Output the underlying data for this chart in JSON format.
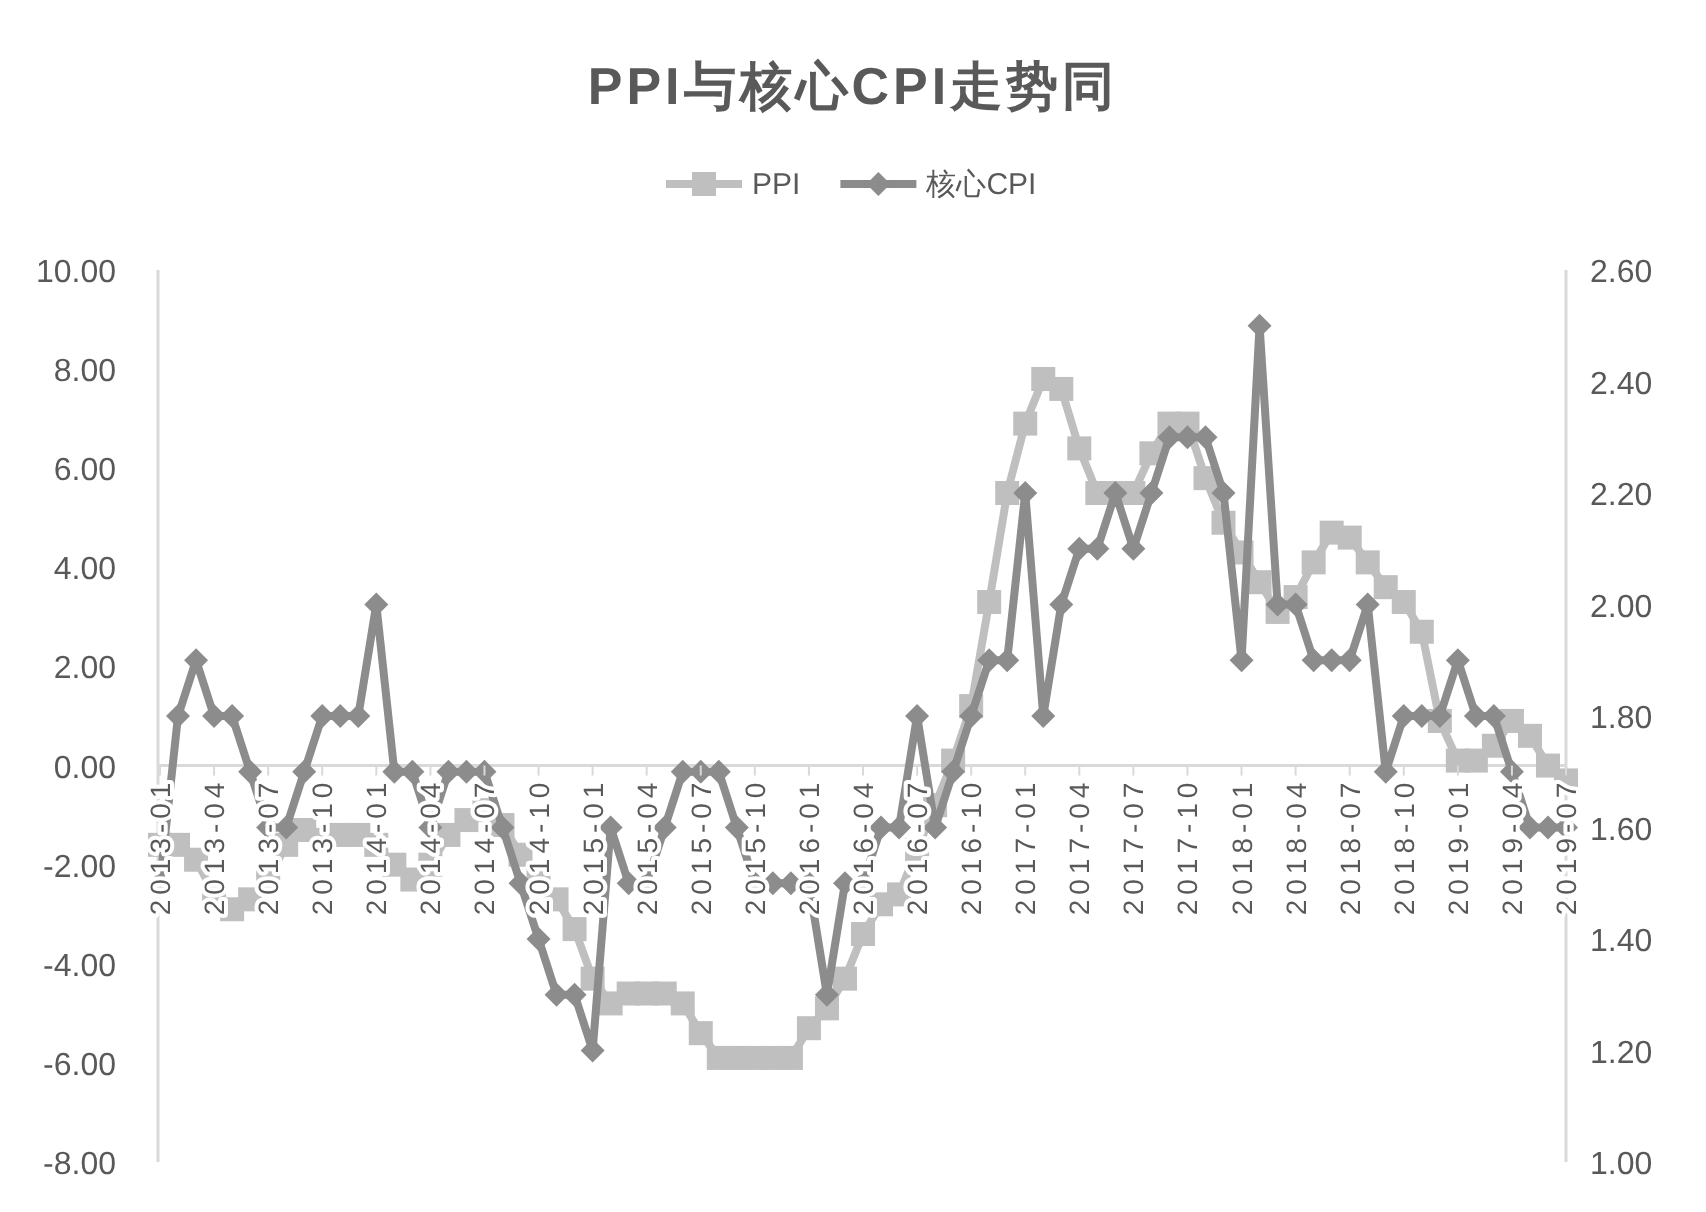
{
  "chart_data": {
    "type": "line",
    "title": "PPI与核心CPI走势同",
    "categories": [
      "2013-01",
      null,
      null,
      "2013-04",
      null,
      null,
      "2013-07",
      null,
      null,
      "2013-10",
      null,
      null,
      "2014-01",
      null,
      null,
      "2014-04",
      null,
      null,
      "2014-07",
      null,
      null,
      "2014-10",
      null,
      null,
      "2015-01",
      null,
      null,
      "2015-04",
      null,
      null,
      "2015-07",
      null,
      null,
      "2015-10",
      null,
      null,
      "2016-01",
      null,
      null,
      "2016-04",
      null,
      null,
      "2016-07",
      null,
      null,
      "2016-10",
      null,
      null,
      "2017-01",
      null,
      null,
      "2017-04",
      null,
      null,
      "2017-07",
      null,
      null,
      "2017-10",
      null,
      null,
      "2018-01",
      null,
      null,
      "2018-04",
      null,
      null,
      "2018-07",
      null,
      null,
      "2018-10",
      null,
      null,
      "2019-01",
      null,
      null,
      "2019-04",
      null,
      null,
      "2019-07"
    ],
    "series": [
      {
        "name": "PPI",
        "color": "#bfbfbf",
        "marker": "square",
        "values": [
          -1.6,
          -1.6,
          -1.9,
          -2.6,
          -2.9,
          -2.7,
          -2.3,
          -1.6,
          -1.3,
          -1.5,
          -1.4,
          -1.4,
          -1.6,
          -2.0,
          -2.3,
          -2.0,
          -1.4,
          -1.1,
          -0.9,
          -1.2,
          -1.8,
          -2.2,
          -2.7,
          -3.3,
          -4.3,
          -4.8,
          -4.6,
          -4.6,
          -4.6,
          -4.8,
          -5.4,
          -5.9,
          -5.9,
          -5.9,
          -5.9,
          -5.9,
          -5.3,
          -4.9,
          -4.3,
          -3.4,
          -2.8,
          -2.6,
          -1.7,
          -0.8,
          0.1,
          1.2,
          3.3,
          5.5,
          6.9,
          7.8,
          7.6,
          6.4,
          5.5,
          5.5,
          5.5,
          6.3,
          6.9,
          6.9,
          5.8,
          4.9,
          4.3,
          3.7,
          3.1,
          3.4,
          4.1,
          4.7,
          4.6,
          4.1,
          3.6,
          3.3,
          2.7,
          0.9,
          0.1,
          0.1,
          0.4,
          0.9,
          0.6,
          0.0,
          -0.3
        ]
      },
      {
        "name": "核心CPI",
        "color": "#8c8c8c",
        "marker": "diamond",
        "axis": "y2",
        "values": [
          1.5,
          1.8,
          1.9,
          1.8,
          1.8,
          1.7,
          1.6,
          1.6,
          1.7,
          1.8,
          1.8,
          1.8,
          2.0,
          1.7,
          1.7,
          1.6,
          1.7,
          1.7,
          1.7,
          1.6,
          1.5,
          1.4,
          1.3,
          1.3,
          1.2,
          1.6,
          1.5,
          1.5,
          1.6,
          1.7,
          1.7,
          1.7,
          1.6,
          1.5,
          1.5,
          1.5,
          1.5,
          1.3,
          1.5,
          1.5,
          1.6,
          1.6,
          1.8,
          1.6,
          1.7,
          1.8,
          1.9,
          1.9,
          2.2,
          1.8,
          2.0,
          2.1,
          2.1,
          2.2,
          2.1,
          2.2,
          2.3,
          2.3,
          2.3,
          2.2,
          1.9,
          2.5,
          2.0,
          2.0,
          1.9,
          1.9,
          1.9,
          2.0,
          1.7,
          1.8,
          1.8,
          1.8,
          1.9,
          1.8,
          1.8,
          1.7,
          1.6,
          1.6,
          1.6
        ]
      }
    ],
    "ylim": [
      -8,
      10
    ],
    "yticks": [
      {
        "value": -8,
        "label": "-8.00"
      },
      {
        "value": -6,
        "label": "-6.00"
      },
      {
        "value": -4,
        "label": "-4.00"
      },
      {
        "value": -2,
        "label": "-2.00"
      },
      {
        "value": 0,
        "label": "0.00"
      },
      {
        "value": 2,
        "label": "2.00"
      },
      {
        "value": 4,
        "label": "4.00"
      },
      {
        "value": 6,
        "label": "6.00"
      },
      {
        "value": 8,
        "label": "8.00"
      },
      {
        "value": 10,
        "label": "10.00"
      }
    ],
    "y2lim": [
      1,
      2.6
    ],
    "y2ticks": [
      {
        "value": 1,
        "label": "1.00"
      },
      {
        "value": 1.2,
        "label": "1.20"
      },
      {
        "value": 1.4,
        "label": "1.40"
      },
      {
        "value": 1.6,
        "label": "1.60"
      },
      {
        "value": 1.8,
        "label": "1.80"
      },
      {
        "value": 2,
        "label": "2.00"
      },
      {
        "value": 2.2,
        "label": "2.20"
      },
      {
        "value": 2.4,
        "label": "2.40"
      },
      {
        "value": 2.6,
        "label": "2.60"
      }
    ],
    "legend": "top",
    "line_style": "solid"
  }
}
